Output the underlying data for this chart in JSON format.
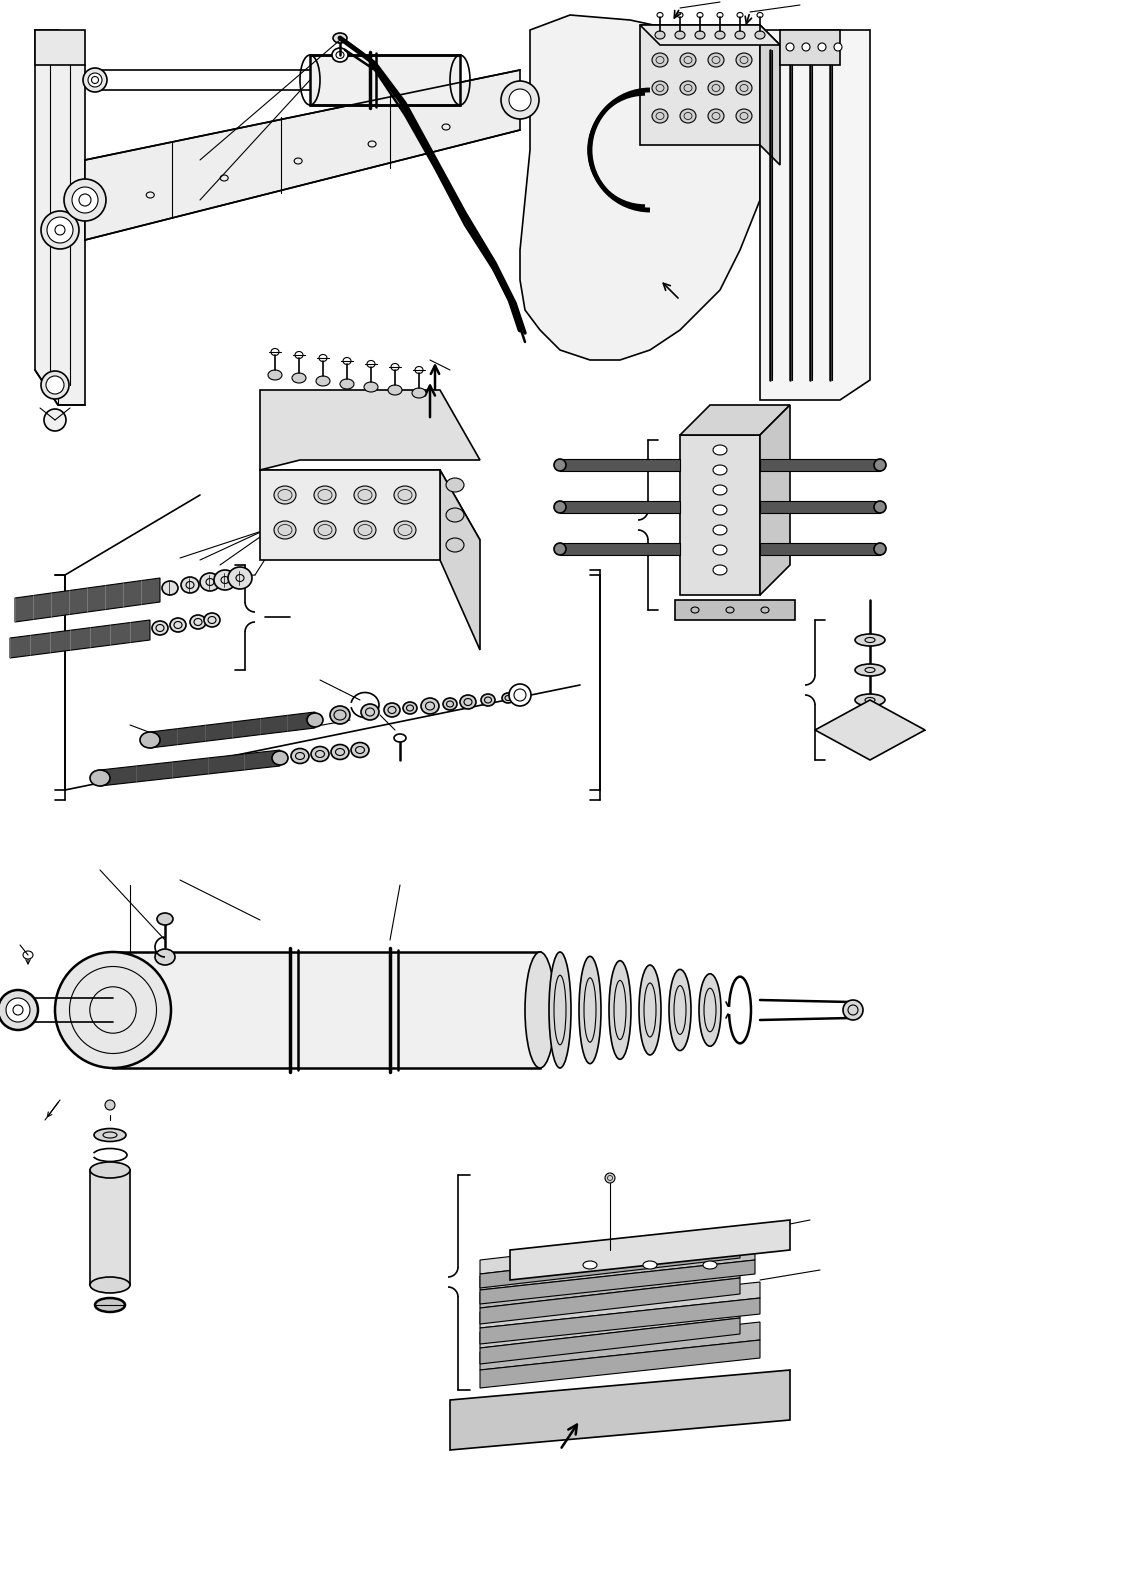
{
  "bg_color": "#ffffff",
  "line_color": "#000000",
  "fig_width": 11.3,
  "fig_height": 15.75,
  "dpi": 100,
  "lw_hair": 0.5,
  "lw_thin": 0.8,
  "lw_med": 1.2,
  "lw_thick": 1.8,
  "lw_vthick": 2.5,
  "lw_heavy": 3.5
}
